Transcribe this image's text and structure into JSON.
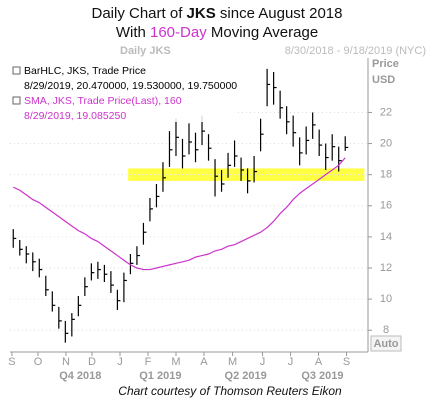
{
  "chart_data": {
    "type": "ohlc",
    "title": [
      "Daily Chart of ",
      "JKS",
      " since August 2018"
    ],
    "subtitle": [
      "With ",
      "160-Day",
      " Moving Average"
    ],
    "subtitle_highlight_color": "#cc33cc",
    "header_label": "Daily JKS",
    "date_range": "8/30/2018 - 9/18/2019 (NYC)",
    "y_axis_label": [
      "Price",
      "USD"
    ],
    "auto_button": "Auto",
    "legend_readouts": [
      "8/29/2019, 20.470000, 19.530000, 19.750000",
      "8/29/2019, 19.085250"
    ],
    "series": [
      {
        "name": "BarHLC, JKS, Trade Price",
        "color": "#000000",
        "high": [
          14.5,
          13.8,
          13.4,
          13,
          12.6,
          11.5,
          10.5,
          9.5,
          8.6,
          9.1,
          10.2,
          11.4,
          12.3,
          12.4,
          12.2,
          11.8,
          10.6,
          11.7,
          12.9,
          13.4,
          14.9,
          16.5,
          17.4,
          18.8,
          20.8,
          21.6,
          20.3,
          21.3,
          20.7,
          21.8,
          20.6,
          19,
          18.3,
          19.4,
          20.2,
          19.1,
          18.4,
          19.2,
          21.6,
          24.8,
          24.6,
          23.4,
          22.4,
          21.8,
          20.4,
          21.1,
          22,
          20.9,
          20,
          20.6,
          19.8,
          20.47
        ],
        "low": [
          13.3,
          12.8,
          12.3,
          11.8,
          11.4,
          10.2,
          9.2,
          8.1,
          7.2,
          7.6,
          8.9,
          10.2,
          11.2,
          11.3,
          11.1,
          10.4,
          9.3,
          9.8,
          11.6,
          12.2,
          13.5,
          15,
          15.9,
          16.9,
          18.5,
          19.2,
          18.4,
          19.3,
          18.8,
          19.9,
          18.9,
          16.6,
          16.9,
          17.8,
          18.5,
          17.6,
          16.8,
          17.5,
          19.5,
          22.4,
          22.5,
          21.6,
          20.6,
          19.8,
          18.6,
          19.3,
          20.3,
          19.2,
          18.3,
          18.9,
          18.2,
          19.53
        ],
        "close": [
          13.9,
          13.2,
          12.9,
          12.4,
          11.9,
          10.6,
          9.6,
          8.6,
          7.8,
          8.7,
          9.6,
          10.8,
          11.7,
          11.9,
          11.6,
          10.9,
          9.9,
          11.2,
          12.3,
          12.8,
          14.3,
          15.8,
          16.6,
          17.8,
          19.6,
          20.4,
          19.2,
          20.1,
          19.6,
          20.8,
          19.7,
          17.9,
          17.4,
          18.6,
          19.2,
          18.3,
          17.6,
          18.2,
          20.6,
          23.8,
          23.6,
          22.3,
          21.4,
          20.7,
          19.4,
          20.2,
          21.2,
          19.9,
          19.1,
          19.8,
          18.9,
          19.75
        ]
      },
      {
        "name": "SMA, JKS, Trade Price(Last), 160",
        "color": "#cc33cc",
        "values": [
          17.2,
          17,
          16.7,
          16.4,
          16.2,
          15.9,
          15.6,
          15.3,
          15,
          14.7,
          14.4,
          14.2,
          13.9,
          13.7,
          13.4,
          13.1,
          12.8,
          12.5,
          12.2,
          12,
          11.9,
          11.9,
          12,
          12.1,
          12.2,
          12.3,
          12.4,
          12.5,
          12.7,
          12.8,
          12.9,
          13.1,
          13.2,
          13.4,
          13.5,
          13.7,
          13.9,
          14.1,
          14.3,
          14.6,
          15,
          15.5,
          15.9,
          16.4,
          16.8,
          17.1,
          17.4,
          17.7,
          18,
          18.3,
          18.6,
          19.09
        ]
      }
    ],
    "highlight": {
      "range": [
        17.6,
        18.4
      ],
      "color": "#ffff44"
    },
    "xlim": [
      -0.5,
      54.5
    ],
    "xticks": [
      {
        "value": -0.2,
        "label": "S"
      },
      {
        "value": 3.8,
        "label": "O"
      },
      {
        "value": 8.1,
        "label": "N"
      },
      {
        "value": 12.1,
        "label": "D"
      },
      {
        "value": 16.4,
        "label": "J"
      },
      {
        "value": 20.7,
        "label": "F"
      },
      {
        "value": 25,
        "label": "M"
      },
      {
        "value": 29.3,
        "label": "A"
      },
      {
        "value": 33.7,
        "label": "M"
      },
      {
        "value": 38.3,
        "label": "J"
      },
      {
        "value": 42.6,
        "label": "J"
      },
      {
        "value": 46.9,
        "label": "A"
      },
      {
        "value": 51.2,
        "label": "S"
      }
    ],
    "quarters": [
      {
        "value": 10.3,
        "label": "Q4 2018"
      },
      {
        "value": 22.6,
        "label": "Q1 2019"
      },
      {
        "value": 35.7,
        "label": "Q2 2019"
      },
      {
        "value": 47.5,
        "label": "Q3 2019"
      }
    ],
    "ylim": [
      6.6,
      25.5
    ],
    "yticks": [
      8,
      10,
      12,
      14,
      16,
      18,
      20,
      22
    ],
    "grid": true
  },
  "footer": "Chart courtesy of Thomson Reuters Eikon"
}
